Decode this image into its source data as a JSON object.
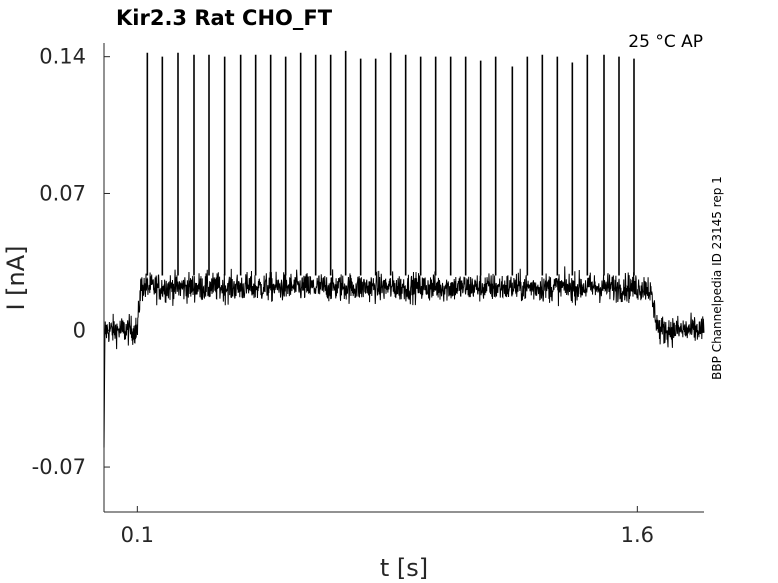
{
  "chart_data": {
    "type": "line",
    "title": "Kir2.3  Rat  CHO_FT",
    "condition": "25 °C  AP",
    "side_label": "BBP Channelpedia ID 23145 rep 1",
    "xlabel": "t [s]",
    "ylabel": "I [nA]",
    "xlim": [
      0.0,
      1.8
    ],
    "ylim": [
      -0.093,
      0.147
    ],
    "x_ticks": [
      {
        "value": 0.1,
        "label": "0.1"
      },
      {
        "value": 1.6,
        "label": "1.6"
      }
    ],
    "y_ticks": [
      {
        "value": 0.14,
        "label": "0.14"
      },
      {
        "value": 0.07,
        "label": "0.07"
      },
      {
        "value": 0,
        "label": "0"
      },
      {
        "value": -0.07,
        "label": "-0.07"
      }
    ],
    "grid": false,
    "baseline_current": 0.0,
    "plateau_current": 0.022,
    "noise_amplitude": 0.007,
    "ap_stimulus_window": [
      0.1,
      1.635
    ],
    "spike_times": [
      0.13,
      0.175,
      0.222,
      0.27,
      0.315,
      0.362,
      0.41,
      0.455,
      0.5,
      0.545,
      0.59,
      0.635,
      0.68,
      0.725,
      0.77,
      0.815,
      0.86,
      0.905,
      0.95,
      0.995,
      1.04,
      1.085,
      1.13,
      1.175,
      1.225,
      1.27,
      1.315,
      1.36,
      1.405,
      1.45,
      1.5,
      1.545,
      1.59
    ],
    "spike_peaks": [
      0.142,
      0.14,
      0.142,
      0.141,
      0.141,
      0.14,
      0.141,
      0.141,
      0.141,
      0.14,
      0.142,
      0.141,
      0.141,
      0.143,
      0.139,
      0.139,
      0.142,
      0.141,
      0.14,
      0.14,
      0.14,
      0.14,
      0.138,
      0.14,
      0.135,
      0.14,
      0.141,
      0.14,
      0.137,
      0.141,
      0.141,
      0.14,
      0.139
    ]
  }
}
